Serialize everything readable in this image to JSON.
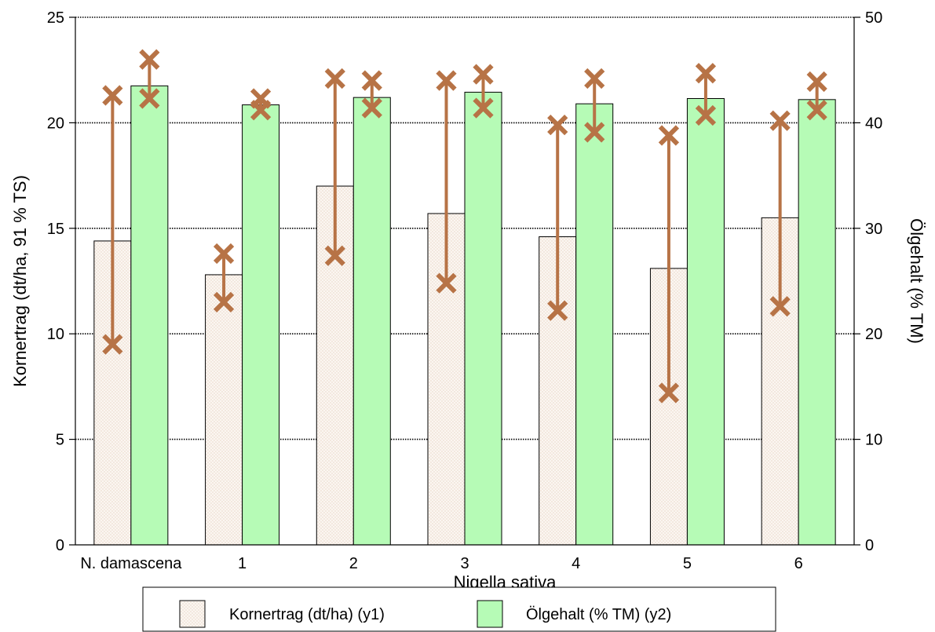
{
  "chart_data": {
    "type": "bar",
    "title": "",
    "xlabel": "Nigella sativa",
    "ylabel": "Kornertrag (dt/ha, 91 % TS)",
    "y2label": "Ölgehalt (% TM)",
    "categories": [
      "N. damascena",
      "1",
      "2",
      "3",
      "4",
      "5",
      "6"
    ],
    "ylim": [
      0,
      25
    ],
    "y2lim": [
      0,
      50
    ],
    "yticks": [
      0,
      5,
      10,
      15,
      20,
      25
    ],
    "y2ticks": [
      0,
      10,
      20,
      30,
      40,
      50
    ],
    "grid": "horizontal dotted at major y ticks",
    "legend_position": "bottom",
    "series": [
      {
        "name": "Kornertrag (dt/ha) (y1)",
        "axis": "y1",
        "values": [
          14.4,
          12.8,
          17.0,
          15.7,
          14.6,
          13.1,
          15.5
        ],
        "error_low": [
          9.5,
          11.5,
          13.7,
          12.4,
          11.1,
          7.2,
          11.3
        ],
        "error_high": [
          21.3,
          13.8,
          22.1,
          22.0,
          19.9,
          19.4,
          20.1
        ]
      },
      {
        "name": "Ölgehalt (% TM) (y2)",
        "axis": "y2",
        "values": [
          43.5,
          41.7,
          42.4,
          42.9,
          41.8,
          42.3,
          42.2
        ],
        "error_low": [
          42.3,
          41.2,
          41.4,
          41.4,
          39.1,
          40.7,
          41.2
        ],
        "error_high": [
          46.0,
          42.3,
          44.0,
          44.6,
          44.2,
          44.7,
          43.9
        ]
      }
    ],
    "colors": {
      "bar1_fill": "#fbf6f1",
      "bar1_dots": "#e8d8cc",
      "bar2_fill": "#b6fbb6",
      "error_color": "#b77346",
      "grid_color": "#000000"
    }
  }
}
